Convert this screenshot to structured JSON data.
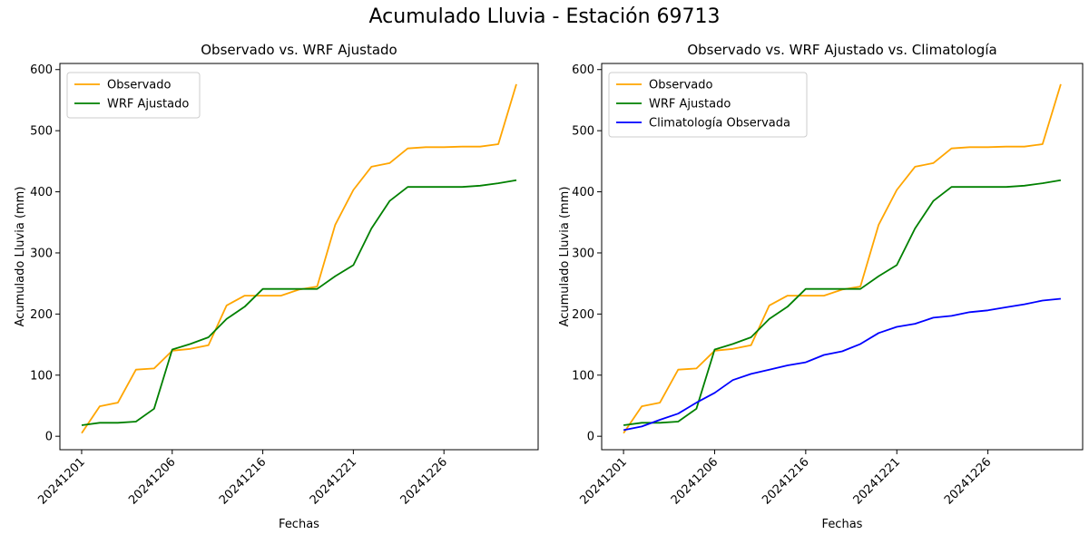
{
  "suptitle": "Acumulado Lluvia - Estación 69713",
  "chart_data": [
    {
      "type": "line",
      "title": "Observado vs. WRF Ajustado",
      "xlabel": "Fechas",
      "ylabel": "Acumulado Lluvia (mm)",
      "ylim": [
        -22,
        610
      ],
      "y_ticks": [
        0,
        100,
        200,
        300,
        400,
        500,
        600
      ],
      "x_tick_labels": [
        "20241201",
        "20241206",
        "20241216",
        "20241221",
        "20241226"
      ],
      "legend_position": "upper-left",
      "grid": false,
      "series": [
        {
          "name": "Observado",
          "color": "#ffa500",
          "values": [
            5,
            49,
            55,
            109,
            111,
            140,
            143,
            149,
            214,
            230,
            230,
            230,
            240,
            245,
            346,
            403,
            441,
            447,
            471,
            473,
            473,
            474,
            474,
            478,
            576
          ]
        },
        {
          "name": "WRF Ajustado",
          "color": "#008000",
          "values": [
            18,
            22,
            22,
            24,
            45,
            142,
            151,
            162,
            192,
            212,
            241,
            241,
            241,
            241,
            262,
            280,
            340,
            385,
            408,
            408,
            408,
            408,
            410,
            414,
            419
          ]
        }
      ]
    },
    {
      "type": "line",
      "title": "Observado vs. WRF Ajustado vs. Climatología",
      "xlabel": "Fechas",
      "ylabel": "Acumulado Lluvia (mm)",
      "ylim": [
        -22,
        610
      ],
      "y_ticks": [
        0,
        100,
        200,
        300,
        400,
        500,
        600
      ],
      "x_tick_labels": [
        "20241201",
        "20241206",
        "20241216",
        "20241221",
        "20241226"
      ],
      "legend_position": "upper-left",
      "grid": false,
      "series": [
        {
          "name": "Observado",
          "color": "#ffa500",
          "values": [
            5,
            49,
            55,
            109,
            111,
            140,
            143,
            149,
            214,
            230,
            230,
            230,
            240,
            245,
            346,
            403,
            441,
            447,
            471,
            473,
            473,
            474,
            474,
            478,
            576
          ]
        },
        {
          "name": "WRF Ajustado",
          "color": "#008000",
          "values": [
            18,
            22,
            22,
            24,
            45,
            142,
            151,
            162,
            192,
            212,
            241,
            241,
            241,
            241,
            262,
            280,
            340,
            385,
            408,
            408,
            408,
            408,
            410,
            414,
            419
          ]
        },
        {
          "name": "Climatología Observada",
          "color": "#0000ff",
          "values": [
            10,
            16,
            27,
            37,
            55,
            71,
            92,
            102,
            109,
            116,
            121,
            133,
            139,
            151,
            169,
            179,
            184,
            194,
            197,
            203,
            206,
            211,
            216,
            222,
            225
          ]
        }
      ]
    }
  ]
}
